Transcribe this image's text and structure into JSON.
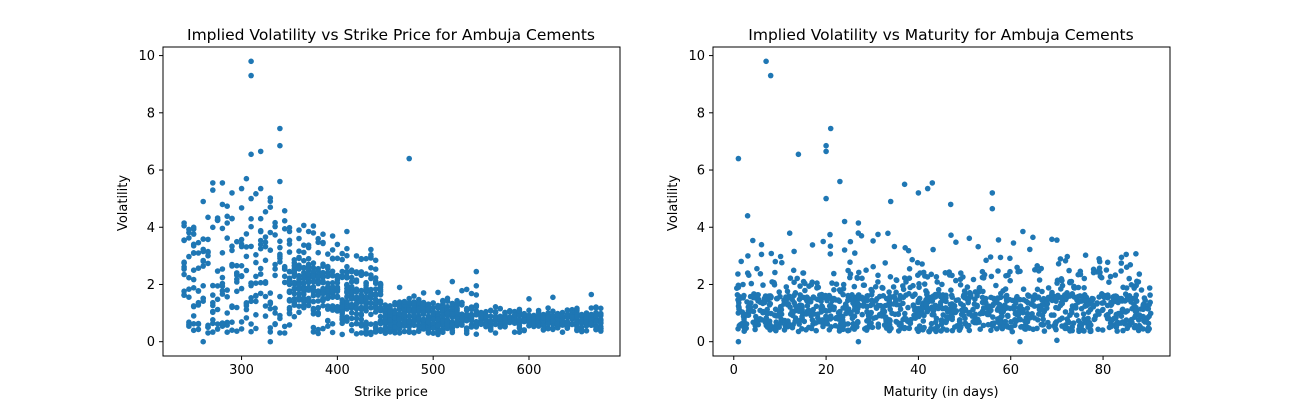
{
  "chart_data": [
    {
      "type": "scatter",
      "title": "Implied Volatility vs Strike Price for Ambuja Cements",
      "xlabel": "Strike price",
      "ylabel": "Volatility",
      "xlim": [
        218,
        695
      ],
      "ylim": [
        -0.5,
        10.3
      ],
      "xticks": [
        300,
        400,
        500,
        600
      ],
      "yticks": [
        0,
        2,
        4,
        6,
        8,
        10
      ],
      "grid": false,
      "color": "#1f77b4",
      "notable_points": [
        {
          "x": 240,
          "y": 4.05
        },
        {
          "x": 240,
          "y": 3.55
        },
        {
          "x": 250,
          "y": 3.35
        },
        {
          "x": 250,
          "y": 2.5
        },
        {
          "x": 250,
          "y": 1.25
        },
        {
          "x": 250,
          "y": 0.9
        },
        {
          "x": 250,
          "y": 0.4
        },
        {
          "x": 260,
          "y": 0.0
        },
        {
          "x": 260,
          "y": 4.9
        },
        {
          "x": 270,
          "y": 5.55
        },
        {
          "x": 270,
          "y": 5.3
        },
        {
          "x": 270,
          "y": 4.0
        },
        {
          "x": 280,
          "y": 5.55
        },
        {
          "x": 280,
          "y": 4.8
        },
        {
          "x": 280,
          "y": 0.65
        },
        {
          "x": 290,
          "y": 5.2
        },
        {
          "x": 300,
          "y": 5.35
        },
        {
          "x": 310,
          "y": 9.8
        },
        {
          "x": 310,
          "y": 9.3
        },
        {
          "x": 310,
          "y": 6.55
        },
        {
          "x": 310,
          "y": 5.0
        },
        {
          "x": 320,
          "y": 6.65
        },
        {
          "x": 320,
          "y": 5.35
        },
        {
          "x": 330,
          "y": 4.7
        },
        {
          "x": 330,
          "y": 0.0
        },
        {
          "x": 340,
          "y": 7.45
        },
        {
          "x": 340,
          "y": 6.85
        },
        {
          "x": 340,
          "y": 5.6
        },
        {
          "x": 360,
          "y": 3.9
        },
        {
          "x": 370,
          "y": 3.85
        },
        {
          "x": 380,
          "y": 3.6
        },
        {
          "x": 400,
          "y": 3.4
        },
        {
          "x": 410,
          "y": 3.25
        },
        {
          "x": 420,
          "y": 3.0
        },
        {
          "x": 430,
          "y": 2.9
        },
        {
          "x": 475,
          "y": 6.4
        },
        {
          "x": 520,
          "y": 2.1
        },
        {
          "x": 545,
          "y": 2.45
        },
        {
          "x": 600,
          "y": 1.5
        },
        {
          "x": 625,
          "y": 1.55
        },
        {
          "x": 665,
          "y": 1.65
        },
        {
          "x": 675,
          "y": 0.65
        }
      ]
    },
    {
      "type": "scatter",
      "title": "Implied Volatility vs Maturity for Ambuja Cements",
      "xlabel": "Maturity (in days)",
      "ylabel": "Volatility",
      "xlim": [
        -4.5,
        94.5
      ],
      "ylim": [
        -0.5,
        10.3
      ],
      "xticks": [
        0,
        20,
        40,
        60,
        80
      ],
      "yticks": [
        0,
        2,
        4,
        6,
        8,
        10
      ],
      "grid": false,
      "color": "#1f77b4",
      "notable_points": [
        {
          "x": 1,
          "y": 6.4
        },
        {
          "x": 1,
          "y": 0.0
        },
        {
          "x": 1,
          "y": 1.9
        },
        {
          "x": 2,
          "y": 2.0
        },
        {
          "x": 3,
          "y": 4.4
        },
        {
          "x": 5,
          "y": 2.55
        },
        {
          "x": 6,
          "y": 3.05
        },
        {
          "x": 7,
          "y": 9.8
        },
        {
          "x": 8,
          "y": 9.3
        },
        {
          "x": 9,
          "y": 2.8
        },
        {
          "x": 14,
          "y": 6.55
        },
        {
          "x": 15,
          "y": 2.4
        },
        {
          "x": 20,
          "y": 6.85
        },
        {
          "x": 20,
          "y": 6.65
        },
        {
          "x": 20,
          "y": 5.0
        },
        {
          "x": 21,
          "y": 7.45
        },
        {
          "x": 23,
          "y": 5.6
        },
        {
          "x": 24,
          "y": 4.2
        },
        {
          "x": 27,
          "y": 4.15
        },
        {
          "x": 27,
          "y": 0.0
        },
        {
          "x": 34,
          "y": 4.9
        },
        {
          "x": 37,
          "y": 5.5
        },
        {
          "x": 40,
          "y": 5.2
        },
        {
          "x": 42,
          "y": 5.35
        },
        {
          "x": 43,
          "y": 5.55
        },
        {
          "x": 47,
          "y": 4.8
        },
        {
          "x": 56,
          "y": 5.2
        },
        {
          "x": 56,
          "y": 4.65
        },
        {
          "x": 62,
          "y": 0.0
        },
        {
          "x": 70,
          "y": 3.55
        },
        {
          "x": 70,
          "y": 0.05
        },
        {
          "x": 84,
          "y": 2.95
        },
        {
          "x": 90,
          "y": 1.3
        },
        {
          "x": 90,
          "y": 0.45
        }
      ]
    }
  ]
}
